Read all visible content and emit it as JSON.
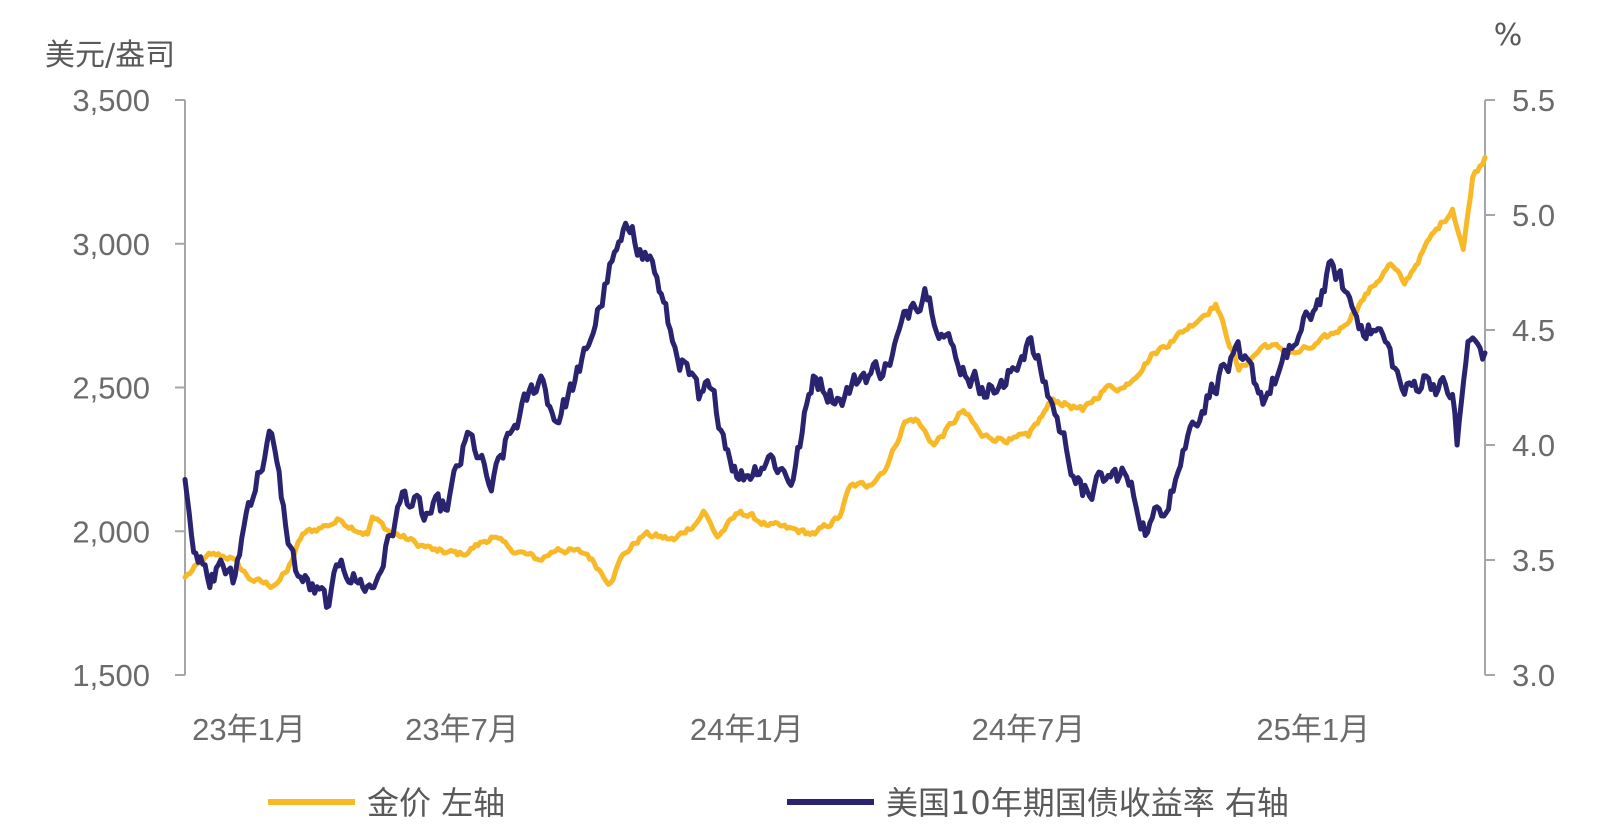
{
  "chart_data": {
    "type": "line",
    "y_left_title": "美元/盎司",
    "y_right_title": "%",
    "y_left_ticks": [
      "3,500",
      "3,000",
      "2,500",
      "2,000",
      "1,500"
    ],
    "y_right_ticks": [
      "5.5",
      "5.0",
      "4.5",
      "4.0",
      "3.5",
      "3.0"
    ],
    "x_ticks": [
      "23年1月",
      "23年7月",
      "24年1月",
      "24年7月",
      "25年1月"
    ],
    "ylim_left": [
      1500,
      3500
    ],
    "ylim_right": [
      3.0,
      5.5
    ],
    "grid": false,
    "legend_position": "bottom",
    "series": [
      {
        "name": "金价 左轴",
        "axis": "left",
        "color": "#F7B928",
        "x": [
          "2023-01-03",
          "2023-01-20",
          "2023-02-01",
          "2023-02-15",
          "2023-03-01",
          "2023-03-10",
          "2023-03-20",
          "2023-04-04",
          "2023-04-13",
          "2023-05-01",
          "2023-05-04",
          "2023-05-15",
          "2023-06-01",
          "2023-06-15",
          "2023-07-01",
          "2023-07-20",
          "2023-08-01",
          "2023-08-20",
          "2023-09-01",
          "2023-09-20",
          "2023-10-05",
          "2023-10-13",
          "2023-10-27",
          "2023-11-15",
          "2023-12-01",
          "2023-12-04",
          "2023-12-13",
          "2023-12-28",
          "2024-01-15",
          "2024-02-14",
          "2024-03-01",
          "2024-03-08",
          "2024-03-20",
          "2024-04-01",
          "2024-04-12",
          "2024-04-19",
          "2024-05-01",
          "2024-05-20",
          "2024-06-01",
          "2024-06-20",
          "2024-07-01",
          "2024-07-17",
          "2024-08-05",
          "2024-08-20",
          "2024-09-01",
          "2024-09-20",
          "2024-10-01",
          "2024-10-30",
          "2024-11-14",
          "2024-12-01",
          "2024-12-20",
          "2025-01-01",
          "2025-01-20",
          "2025-02-01",
          "2025-02-20",
          "2025-03-01",
          "2025-03-20",
          "2025-04-01",
          "2025-04-08",
          "2025-04-14",
          "2025-04-22"
        ],
        "values": [
          1840,
          1920,
          1910,
          1830,
          1810,
          1860,
          1990,
          2020,
          2040,
          1990,
          2050,
          2000,
          1960,
          1930,
          1920,
          1980,
          1940,
          1900,
          1940,
          1920,
          1820,
          1920,
          1990,
          1970,
          2040,
          2070,
          1980,
          2070,
          2020,
          1990,
          2050,
          2160,
          2160,
          2230,
          2380,
          2390,
          2300,
          2420,
          2330,
          2320,
          2330,
          2460,
          2420,
          2500,
          2500,
          2620,
          2660,
          2790,
          2560,
          2650,
          2620,
          2640,
          2710,
          2800,
          2930,
          2860,
          3040,
          3120,
          2980,
          3230,
          3300
        ]
      },
      {
        "name": "美国10年期国债收益率 右轴",
        "axis": "right",
        "color": "#2A2470",
        "x": [
          "2023-01-03",
          "2023-01-10",
          "2023-01-19",
          "2023-01-26",
          "2023-02-03",
          "2023-02-13",
          "2023-02-28",
          "2023-03-02",
          "2023-03-09",
          "2023-03-17",
          "2023-04-06",
          "2023-04-14",
          "2023-04-25",
          "2023-05-05",
          "2023-05-25",
          "2023-06-05",
          "2023-06-20",
          "2023-07-06",
          "2023-07-20",
          "2023-08-01",
          "2023-08-21",
          "2023-08-31",
          "2023-09-15",
          "2023-09-28",
          "2023-10-06",
          "2023-10-19",
          "2023-10-24",
          "2023-11-01",
          "2023-11-14",
          "2023-12-01",
          "2023-12-08",
          "2023-12-27",
          "2024-01-15",
          "2024-01-31",
          "2024-02-13",
          "2024-03-01",
          "2024-03-15",
          "2024-04-01",
          "2024-04-16",
          "2024-04-25",
          "2024-05-15",
          "2024-06-01",
          "2024-06-15",
          "2024-07-01",
          "2024-07-15",
          "2024-08-05",
          "2024-08-20",
          "2024-09-01",
          "2024-09-16",
          "2024-10-01",
          "2024-10-15",
          "2024-11-01",
          "2024-11-15",
          "2024-12-01",
          "2024-12-15",
          "2025-01-01",
          "2025-01-14",
          "2025-02-01",
          "2025-02-15",
          "2025-03-01",
          "2025-03-15",
          "2025-04-01",
          "2025-04-04",
          "2025-04-11",
          "2025-04-22"
        ],
        "values": [
          3.85,
          3.53,
          3.38,
          3.5,
          3.4,
          3.75,
          4.05,
          3.98,
          3.65,
          3.43,
          3.3,
          3.5,
          3.4,
          3.38,
          3.8,
          3.7,
          3.72,
          4.05,
          3.8,
          4.05,
          4.3,
          4.1,
          4.32,
          4.6,
          4.8,
          4.95,
          4.85,
          4.8,
          4.45,
          4.2,
          4.25,
          3.85,
          3.95,
          3.85,
          4.3,
          4.2,
          4.3,
          4.35,
          4.6,
          4.68,
          4.38,
          4.25,
          4.25,
          4.46,
          4.2,
          3.78,
          3.85,
          3.88,
          3.62,
          3.8,
          4.1,
          4.3,
          4.38,
          4.2,
          4.38,
          4.58,
          4.78,
          4.52,
          4.48,
          4.22,
          4.3,
          4.22,
          4.0,
          4.45,
          4.4
        ]
      }
    ]
  }
}
